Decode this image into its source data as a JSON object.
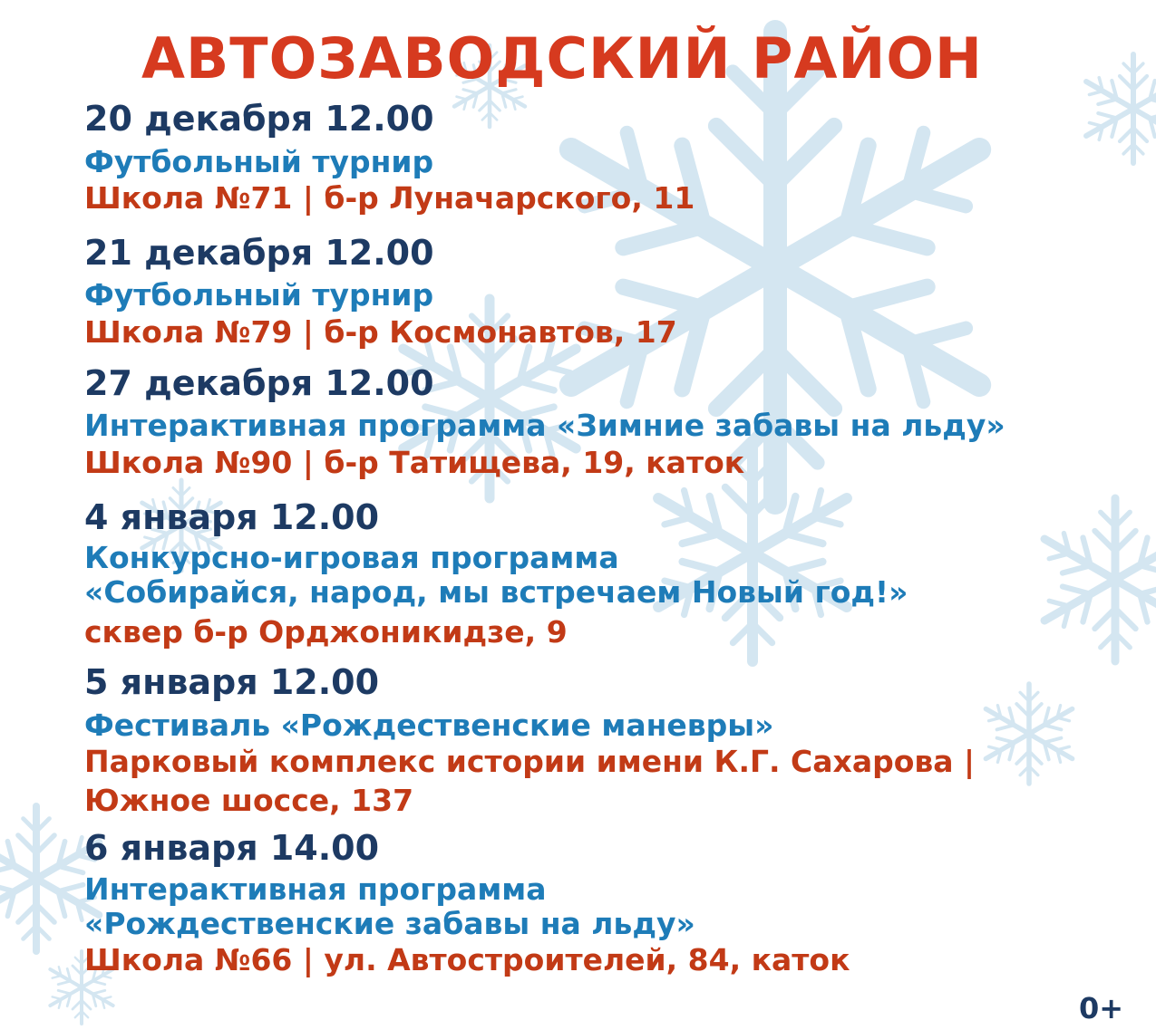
{
  "title": "АВТОЗАВОДСКИЙ РАЙОН",
  "events": [
    {
      "date": "20 декабря 12.00",
      "name": [
        "Футбольный турнир"
      ],
      "venue": [
        "Школа №71 | б-р Луначарского, 11"
      ]
    },
    {
      "date": "21 декабря 12.00",
      "name": [
        "Футбольный турнир"
      ],
      "venue": [
        "Школа №79 | б-р Космонавтов, 17"
      ]
    },
    {
      "date": "27 декабря 12.00",
      "name": [
        "Интерактивная программа «Зимние забавы на льду»"
      ],
      "venue": [
        "Школа №90 | б-р Татищева, 19, каток"
      ]
    },
    {
      "date": "4 января 12.00",
      "name": [
        "Конкурсно-игровая программа",
        "«Собирайся, народ, мы встречаем Новый год!»"
      ],
      "venue": [
        "сквер б-р Орджоникидзе, 9"
      ]
    },
    {
      "date": "5 января 12.00",
      "name": [
        "Фестиваль «Рождественские маневры»"
      ],
      "venue": [
        "Парковый комплекс истории имени К.Г. Сахарова |",
        "Южное шоссе, 137"
      ]
    },
    {
      "date": "6 января 14.00",
      "name": [
        "Интерактивная программа",
        "«Рождественские забавы на льду»"
      ],
      "venue": [
        "Школа №66 | ул. Автостроителей, 84, каток"
      ]
    }
  ],
  "age_rating": "0+",
  "colors": {
    "title": "#d63a1f",
    "date": "#1d3a63",
    "event": "#1e7cb8",
    "venue": "#c23a16",
    "snowflake": "#d4e6f1"
  }
}
